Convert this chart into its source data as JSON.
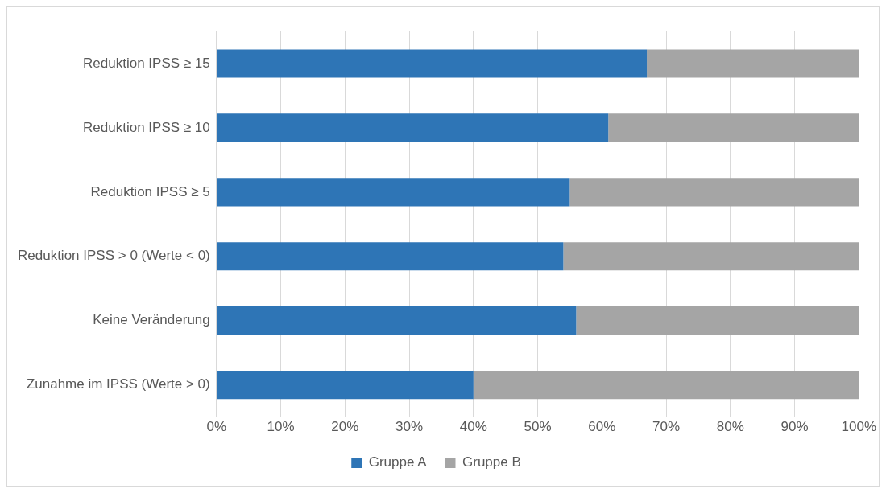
{
  "chart_data": {
    "type": "bar",
    "orientation": "horizontal",
    "stacked": true,
    "categories": [
      "Reduktion IPSS ≥ 15",
      "Reduktion IPSS ≥ 10",
      "Reduktion IPSS ≥ 5",
      "Reduktion IPSS > 0 (Werte < 0)",
      "Keine Veränderung",
      "Zunahme im IPSS (Werte > 0)"
    ],
    "series": [
      {
        "name": "Gruppe A",
        "color": "#2e75b6",
        "values": [
          67,
          61,
          55,
          54,
          56,
          40
        ]
      },
      {
        "name": "Gruppe B",
        "color": "#a5a5a5",
        "values": [
          33,
          39,
          45,
          46,
          44,
          60
        ]
      }
    ],
    "xlim": [
      0,
      100
    ],
    "xticks": [
      {
        "value": 0,
        "label": "0%"
      },
      {
        "value": 10,
        "label": "10%"
      },
      {
        "value": 20,
        "label": "20%"
      },
      {
        "value": 30,
        "label": "30%"
      },
      {
        "value": 40,
        "label": "40%"
      },
      {
        "value": 50,
        "label": "50%"
      },
      {
        "value": 60,
        "label": "60%"
      },
      {
        "value": 70,
        "label": "70%"
      },
      {
        "value": 80,
        "label": "80%"
      },
      {
        "value": 90,
        "label": "90%"
      },
      {
        "value": 100,
        "label": "100%"
      }
    ],
    "grid": "x",
    "legend": "bottom"
  }
}
